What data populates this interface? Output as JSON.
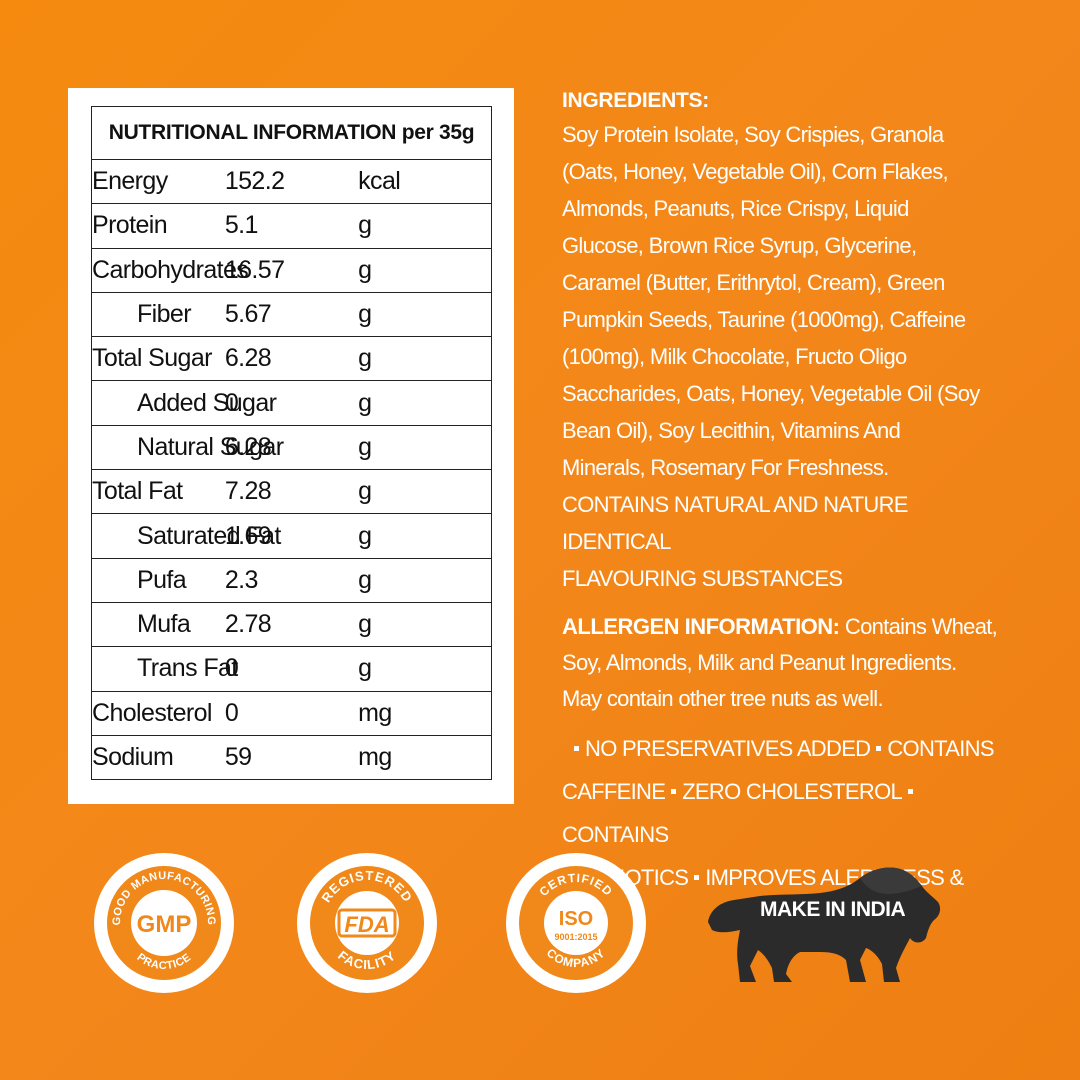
{
  "nutrition": {
    "header": "NUTRITIONAL INFORMATION per 35g",
    "rows": [
      {
        "name": "Energy",
        "value": "152.2",
        "unit": "kcal",
        "indent": false
      },
      {
        "name": "Protein",
        "value": "5.1",
        "unit": "g",
        "indent": false
      },
      {
        "name": "Carbohydrates",
        "value": "16.57",
        "unit": "g",
        "indent": false
      },
      {
        "name": "Fiber",
        "value": "5.67",
        "unit": "g",
        "indent": true
      },
      {
        "name": "Total Sugar",
        "value": "6.28",
        "unit": "g",
        "indent": false
      },
      {
        "name": "Added Sugar",
        "value": "0",
        "unit": "g",
        "indent": true
      },
      {
        "name": "Natural Sugar",
        "value": "6.28",
        "unit": "g",
        "indent": true
      },
      {
        "name": "Total Fat",
        "value": "7.28",
        "unit": "g",
        "indent": false
      },
      {
        "name": "Saturated Fat",
        "value": "1.69",
        "unit": "g",
        "indent": true
      },
      {
        "name": "Pufa",
        "value": "2.3",
        "unit": "g",
        "indent": true
      },
      {
        "name": "Mufa",
        "value": "2.78",
        "unit": "g",
        "indent": true
      },
      {
        "name": "Trans Fat",
        "value": "0",
        "unit": "g",
        "indent": true
      },
      {
        "name": "Cholesterol",
        "value": "0",
        "unit": "mg",
        "indent": false
      },
      {
        "name": "Sodium",
        "value": "59",
        "unit": "mg",
        "indent": false
      }
    ]
  },
  "ingredients": {
    "title": "INGREDIENTS:",
    "lines": [
      "Soy Protein Isolate, Soy Crispies, Granola",
      "(Oats, Honey, Vegetable Oil), Corn Flakes,",
      "Almonds, Peanuts, Rice Crispy, Liquid",
      "Glucose, Brown Rice Syrup, Glycerine,",
      "Caramel (Butter, Erithrytol, Cream), Green",
      "Pumpkin Seeds, Taurine (1000mg), Caffeine",
      "(100mg), Milk Chocolate, Fructo Oligo",
      "Saccharides, Oats, Honey, Vegetable Oil (Soy",
      "Bean Oil), Soy Lecithin, Vitamins  And",
      "Minerals, Rosemary For Freshness."
    ],
    "contains_lines": [
      "CONTAINS NATURAL AND NATURE IDENTICAL",
      "FLAVOURING SUBSTANCES"
    ]
  },
  "allergen": {
    "label": "ALLERGEN INFORMATION:",
    "line1": " Contains Wheat,",
    "line2": "Soy, Almonds, Milk and Peanut Ingredients.",
    "line3": "May contain other tree nuts as well."
  },
  "features": {
    "line1": [
      "NO PRESERVATIVES ADDED",
      "CONTAINS"
    ],
    "line2": [
      "CAFFEINE",
      "ZERO CHOLESTEROL",
      "CONTAINS"
    ],
    "line3": [
      "PREBIOTICS",
      "IMPROVES ALERTNESS & FOCUS"
    ]
  },
  "badges": {
    "gmp": {
      "top": "GOOD MANUFACTURING",
      "center": "GMP",
      "bottom": "PRACTICE"
    },
    "fda": {
      "top": "REGISTERED",
      "center": "FDA",
      "bottom": "FACILITY"
    },
    "iso": {
      "top": "CERTIFIED",
      "center": "ISO",
      "sub": "9001:2015",
      "bottom": "COMPANY"
    },
    "make_in_india": "MAKE IN INDIA"
  },
  "colors": {
    "background": "#f3871a",
    "badge_orange": "#f0881a",
    "lion_dark": "#2b2b2b"
  }
}
